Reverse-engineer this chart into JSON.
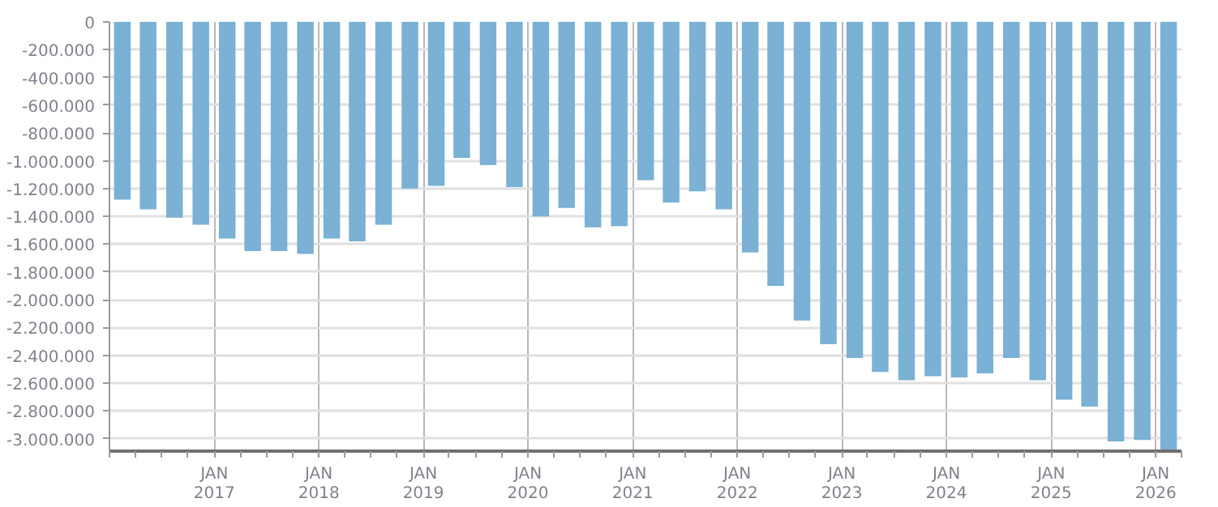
{
  "chart_data": {
    "type": "bar",
    "color": "#7ab1d4",
    "grid": true,
    "x": [
      "2016-02-15",
      "2016-05-15",
      "2016-08-15",
      "2016-11-15",
      "2017-02-15",
      "2017-05-15",
      "2017-08-15",
      "2017-11-15",
      "2018-02-15",
      "2018-05-15",
      "2018-08-15",
      "2018-11-15",
      "2019-02-15",
      "2019-05-15",
      "2019-08-15",
      "2019-11-15",
      "2020-02-15",
      "2020-05-15",
      "2020-08-15",
      "2020-11-15",
      "2021-02-15",
      "2021-05-15",
      "2021-08-15",
      "2021-11-15",
      "2022-02-15",
      "2022-05-15",
      "2022-08-15",
      "2022-11-15",
      "2023-02-15",
      "2023-05-15",
      "2023-08-15",
      "2023-11-15",
      "2024-02-15",
      "2024-05-15",
      "2024-08-15",
      "2024-11-15",
      "2025-02-15",
      "2025-05-15",
      "2025-08-15",
      "2025-11-15",
      "2026-02-15"
    ],
    "values": [
      -1280000,
      -1350000,
      -1410000,
      -1460000,
      -1560000,
      -1650000,
      -1650000,
      -1670000,
      -1560000,
      -1580000,
      -1460000,
      -1200000,
      -1180000,
      -980000,
      -1030000,
      -1190000,
      -1400000,
      -1340000,
      -1480000,
      -1470000,
      -1140000,
      -1300000,
      -1220000,
      -1350000,
      -1660000,
      -1900000,
      -2150000,
      -2320000,
      -2420000,
      -2520000,
      -2580000,
      -2550000,
      -2560000,
      -2530000,
      -2420000,
      -2580000,
      -2720000,
      -2770000,
      -3020000,
      -3010000,
      -3090000
    ],
    "xlim": [
      "2016-01-01",
      "2026-04-01"
    ],
    "xticks": [
      {
        "value": "2017-01-01",
        "label": "JAN\n2017"
      },
      {
        "value": "2018-01-01",
        "label": "JAN\n2018"
      },
      {
        "value": "2019-01-01",
        "label": "JAN\n2019"
      },
      {
        "value": "2020-01-01",
        "label": "JAN\n2020"
      },
      {
        "value": "2021-01-01",
        "label": "JAN\n2021"
      },
      {
        "value": "2022-01-01",
        "label": "JAN\n2022"
      },
      {
        "value": "2023-01-01",
        "label": "JAN\n2023"
      },
      {
        "value": "2024-01-01",
        "label": "JAN\n2024"
      },
      {
        "value": "2025-01-01",
        "label": "JAN\n2025"
      },
      {
        "value": "2026-01-01",
        "label": "JAN\n2026"
      }
    ],
    "ylim": [
      -3090000,
      0
    ],
    "yticks": [
      0,
      {
        "value": -200000,
        "label": "-200.000"
      },
      {
        "value": -400000,
        "label": "-400.000"
      },
      {
        "value": -600000,
        "label": "-600.000"
      },
      {
        "value": -800000,
        "label": "-800.000"
      },
      {
        "value": -1000000,
        "label": "-1.000.000"
      },
      {
        "value": -1200000,
        "label": "-1.200.000"
      },
      {
        "value": -1400000,
        "label": "-1.400.000"
      },
      {
        "value": -1600000,
        "label": "-1.600.000"
      },
      {
        "value": -1800000,
        "label": "-1.800.000"
      },
      {
        "value": -2000000,
        "label": "-2.000.000"
      },
      {
        "value": -2200000,
        "label": "-2.200.000"
      },
      {
        "value": -2400000,
        "label": "-2.400.000"
      },
      {
        "value": -2600000,
        "label": "-2.600.000"
      },
      {
        "value": -2800000,
        "label": "-2.800.000"
      },
      {
        "value": -3000000,
        "label": "-3.000.000"
      }
    ]
  }
}
